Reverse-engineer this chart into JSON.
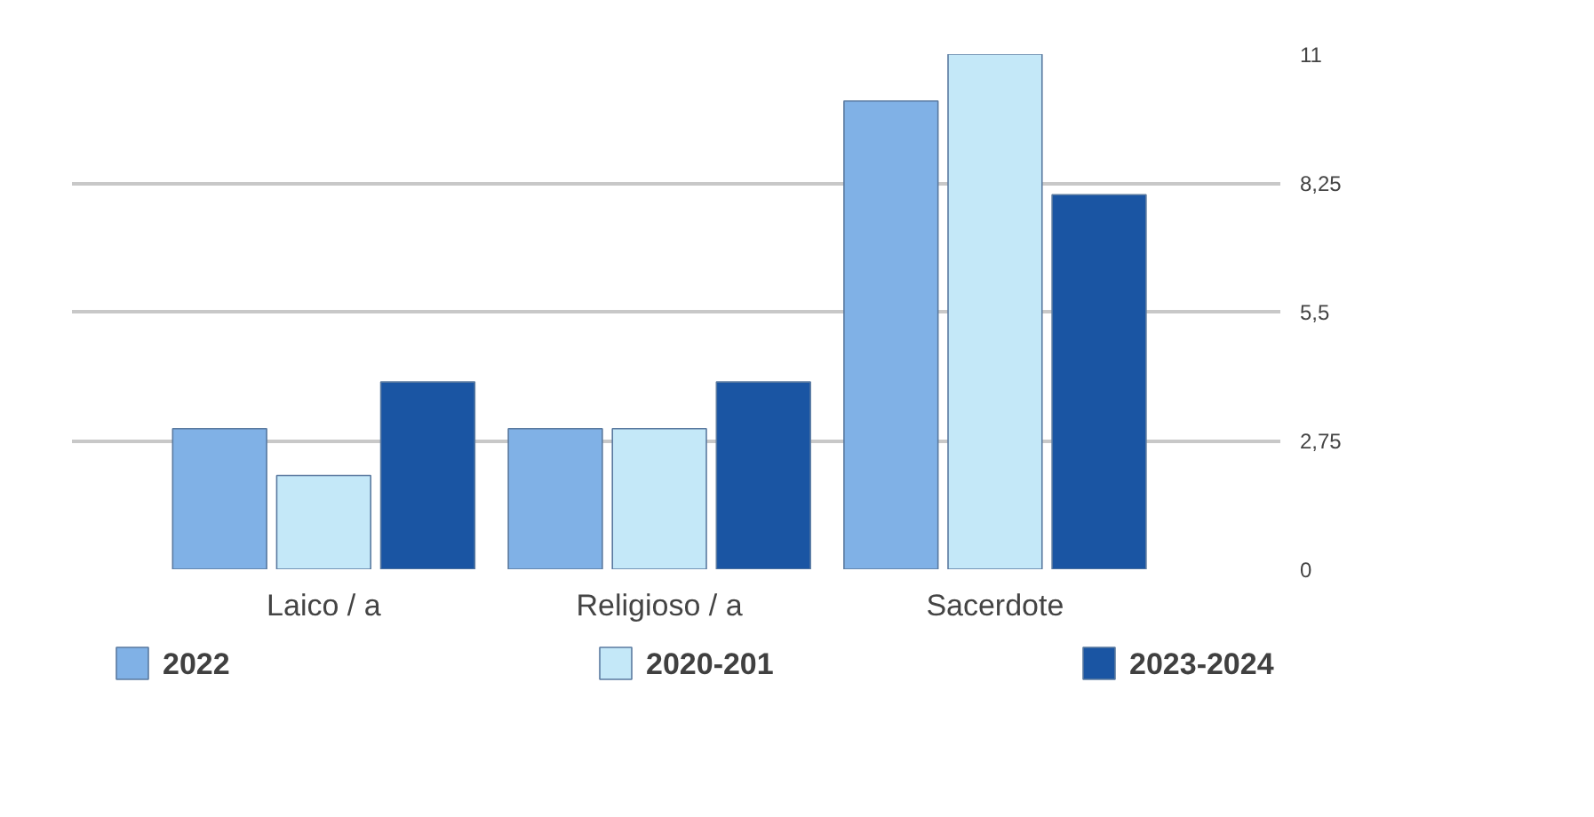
{
  "chart_data": {
    "type": "bar",
    "categories": [
      "Laico / a",
      "Religioso / a",
      "Sacerdote"
    ],
    "series": [
      {
        "name": "2022",
        "color": "#80b1e6",
        "values": [
          3,
          3,
          10
        ]
      },
      {
        "name": "2020-201",
        "color": "#c4e8f8",
        "values": [
          2,
          3,
          11
        ]
      },
      {
        "name": "2023-2024",
        "color": "#1a55a3",
        "values": [
          4,
          4,
          8
        ]
      }
    ],
    "ylim": [
      0,
      11
    ],
    "yticks": [
      0,
      {
        "value": 2.75,
        "label": "2,75"
      },
      {
        "value": 5.5,
        "label": "5,5"
      },
      {
        "value": 8.25,
        "label": "8,25"
      },
      11
    ],
    "grid": "y",
    "legend": "bottom"
  }
}
